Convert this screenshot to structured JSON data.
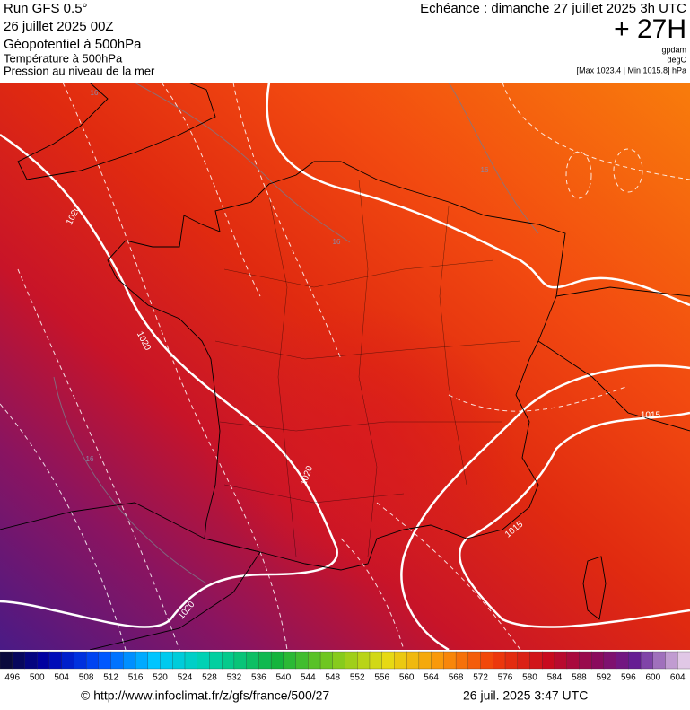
{
  "header": {
    "run": "Run GFS 0.5°",
    "run_date": "26 juillet 2025 00Z",
    "fields": [
      "Géopotentiel à 500hPa",
      "Température à 500hPa",
      "Pression au niveau de la mer"
    ],
    "valid_time": "Echéance : dimanche 27 juillet 2025 3h UTC",
    "lead_time": "+ 27H",
    "units": [
      "gpdam",
      "degC",
      "[Max 1023.4 | Min 1015.8] hPa"
    ]
  },
  "map": {
    "contour_labels": [
      "1020",
      "1020",
      "1020",
      "1020",
      "1015",
      "1015",
      "16",
      "16",
      "16",
      "16"
    ]
  },
  "colorbar": {
    "labels": [
      496,
      500,
      504,
      508,
      512,
      516,
      520,
      524,
      528,
      532,
      536,
      540,
      544,
      548,
      552,
      556,
      560,
      564,
      568,
      572,
      576,
      580,
      584,
      588,
      592,
      596,
      600,
      604
    ]
  },
  "footer": {
    "source": "© http://www.infoclimat.fr/z/gfs/france/500/27",
    "generated": "26 juil. 2025  3:47 UTC"
  }
}
